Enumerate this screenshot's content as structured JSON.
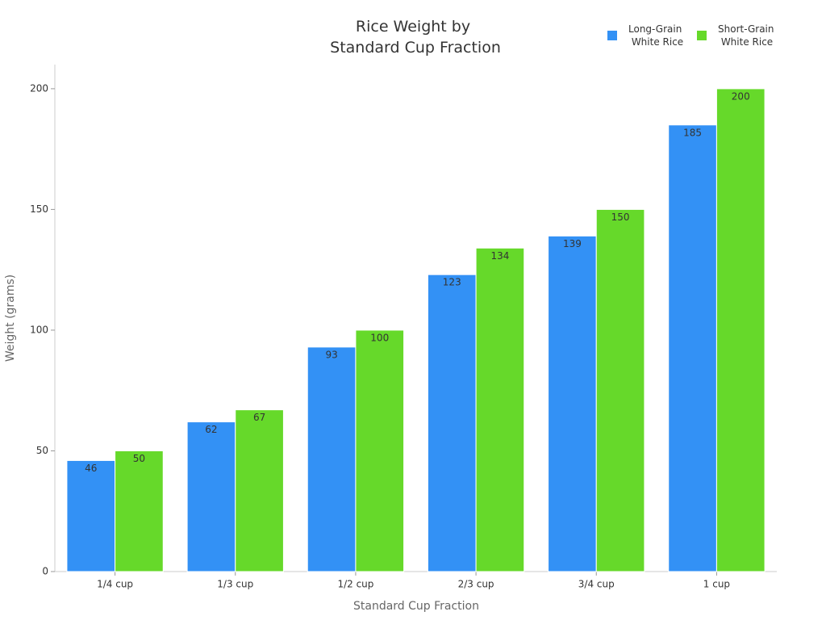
{
  "chart_data": {
    "type": "bar",
    "title": "Rice Weight by Standard Cup Fraction",
    "x_label": "Standard Cup Fraction",
    "y_label": "Weight (grams)",
    "categories": [
      "1/4 cup",
      "1/3 cup",
      "1/2 cup",
      "2/3 cup",
      "3/4 cup",
      "1 cup"
    ],
    "series": [
      {
        "name": "Long-Grain White Rice",
        "color": "#3391f5",
        "values": [
          46,
          62,
          93,
          123,
          139,
          185
        ]
      },
      {
        "name": "Short-Grain White Rice",
        "color": "#66d92a",
        "values": [
          50,
          67,
          100,
          134,
          150,
          200
        ]
      }
    ],
    "ylim": [
      0,
      210
    ],
    "yticks": [
      0,
      50,
      100,
      150,
      200
    ],
    "grid": false,
    "legend": "top-right"
  }
}
